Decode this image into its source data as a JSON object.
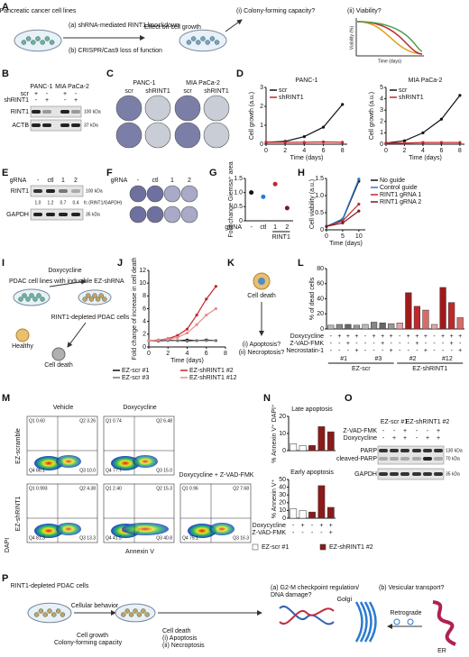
{
  "figure": {
    "panel_labels": [
      "A",
      "B",
      "C",
      "D",
      "E",
      "F",
      "G",
      "H",
      "I",
      "J",
      "K",
      "L",
      "M",
      "N",
      "O",
      "P"
    ],
    "a": {
      "cells": "Pancreatic cancer cell lines",
      "method1": "(a) shRNA-mediated RINT1 knockdown",
      "method2": "(b) CRISPR/Cas9 loss of function",
      "effect": "Effect on cell growth",
      "q1": "(i) Colony-forming capacity?",
      "q2": "(ii) Viability?",
      "ylabel": "Viability (%)",
      "xlabel": "Time (days)"
    },
    "b": {
      "lines": [
        "PANC-1",
        "MIA PaCa-2"
      ],
      "rows": [
        {
          "name": "scr",
          "signs": [
            "+",
            "-",
            "+",
            "-"
          ]
        },
        {
          "name": "shRINT1",
          "signs": [
            "-",
            "+",
            "-",
            "+"
          ]
        }
      ],
      "bands": [
        "RINT1",
        "ACTB"
      ],
      "markers": [
        "100 kDa",
        "37 kDa"
      ]
    },
    "c": {
      "lines": [
        "PANC-1",
        "MIA PaCa-2"
      ],
      "groups": [
        "scr",
        "shRINT1",
        "scr",
        "shRINT1"
      ]
    },
    "e": {
      "header": "gRNA",
      "lanes": [
        "-",
        "ctl",
        "1",
        "2"
      ],
      "bands": [
        "RINT1",
        "GAPDH"
      ],
      "quant": [
        "1.0",
        "1.2",
        "0.7",
        "0.4"
      ],
      "quant_label": "fc (RINT1/GAPDH)",
      "markers": [
        "100 kDa",
        "35 kDa"
      ]
    },
    "f": {
      "header": "gRNA",
      "lanes": [
        "-",
        "ctl",
        "1",
        "2"
      ]
    },
    "i": {
      "cells": "PDAC cell lines with inducible EZ-shRNA",
      "dox": "Doxycycline",
      "depleted": "RINT1-depleted PDAC cells",
      "healthy": "Healthy",
      "death": "Cell death"
    },
    "k": {
      "death": "Cell death",
      "q1": "(i) Apoptosis?",
      "q2": "(ii) Necroptosis?"
    },
    "m": {
      "columns": [
        "Vehicle",
        "Doxycycline",
        "Doxycycline + Z-VAD-FMK"
      ],
      "rows": [
        "EZ-scramble",
        "EZ-shRINT1"
      ],
      "xlabel": "Annexin V",
      "ylabel": "DAPI",
      "plots": [
        {
          "quadrants": [
            "Q1 0.60",
            "Q2 3.26",
            "Q4 86.1",
            "Q3 10.0"
          ]
        },
        {
          "quadrants": [
            "Q1 0.74",
            "Q2 6.48",
            "Q4 77.7",
            "Q3 15.0"
          ]
        },
        {
          "quadrants": [
            "Q1 0.993",
            "Q2 4.38",
            "Q4 81.3",
            "Q3 13.3"
          ]
        },
        {
          "quadrants": [
            "Q1 2.40",
            "Q2 15.3",
            "Q4 41.5",
            "Q3 40.8"
          ]
        },
        {
          "quadrants": [
            "Q1 0.96",
            "Q2 7.68",
            "Q4 75.1",
            "Q3 16.3"
          ]
        }
      ]
    },
    "o": {
      "header": [
        "EZ-scr #1",
        "EZ-shRINT1 #2"
      ],
      "rows": [
        {
          "name": "Z-VAD-FMK",
          "signs": [
            "-",
            "-",
            "+",
            "-",
            "-",
            "+"
          ]
        },
        {
          "name": "Doxycycline",
          "signs": [
            "-",
            "+",
            "+",
            "-",
            "+",
            "+"
          ]
        }
      ],
      "bands": [
        "PARP",
        "cleaved-PARP",
        "GAPDH"
      ],
      "markers": [
        "130 kDa",
        "70 kDa",
        "35 kDa"
      ]
    },
    "p": {
      "cells": "RINT1-depleted PDAC cells",
      "behavior": "Cellular behavior",
      "down1": "Cell growth",
      "down2": "Colony-forming capacity",
      "up1": "Cell death",
      "up2": "(i) Apoptosis",
      "up3": "(ii) Necroptosis",
      "hyp_a": "(a) G2-M checkpoint regulation/",
      "hyp_a2": "DNA damage?",
      "hyp_b": "(b) Vesicular transport?",
      "golgi": "Golgi",
      "retro": "Retrograde",
      "er": "ER"
    }
  },
  "chart_data": [
    {
      "type": "line",
      "title": "PANC-1",
      "xlabel": "Time (days)",
      "ylabel": "Cell growth (a.u.)",
      "x": [
        0,
        2,
        4,
        6,
        8
      ],
      "xlim": [
        0,
        8.5
      ],
      "xticks": [
        0,
        2,
        4,
        6,
        8
      ],
      "ylim": [
        0,
        3
      ],
      "yticks": [
        0,
        1,
        2,
        3
      ],
      "legend": "upper left",
      "series": [
        {
          "name": "scr",
          "color": "#111111",
          "values": [
            0.1,
            0.15,
            0.4,
            0.9,
            2.1
          ]
        },
        {
          "name": "shRINT1",
          "color": "#c0282d",
          "values": [
            0.1,
            0.1,
            0.1,
            0.12,
            0.1
          ]
        }
      ]
    },
    {
      "type": "line",
      "title": "MIA PaCa-2",
      "xlabel": "Time (days)",
      "ylabel": "Cell growth (a.u.)",
      "x": [
        0,
        2,
        4,
        6,
        8
      ],
      "xlim": [
        0,
        8.5
      ],
      "xticks": [
        0,
        2,
        4,
        6,
        8
      ],
      "ylim": [
        0,
        5
      ],
      "yticks": [
        0,
        1,
        2,
        3,
        4,
        5
      ],
      "legend": "upper left",
      "series": [
        {
          "name": "scr",
          "color": "#111111",
          "values": [
            0.1,
            0.3,
            1.0,
            2.2,
            4.3
          ]
        },
        {
          "name": "shRINT1",
          "color": "#c0282d",
          "values": [
            0.1,
            0.1,
            0.15,
            0.15,
            0.15
          ]
        }
      ]
    },
    {
      "type": "dot",
      "xlabel": "gRNA",
      "ylabel": "Fold change Giemsa⁺ area",
      "categories": [
        "-",
        "ctl",
        "1",
        "2"
      ],
      "group_label": "RINT1",
      "values": [
        1.0,
        0.85,
        1.3,
        0.45
      ],
      "colors": [
        "#111111",
        "#2b7bd0",
        "#c0282d",
        "#7a1a1a"
      ],
      "ylim": [
        0,
        1.5
      ],
      "yticks": [
        0,
        0.5,
        {
          "value": 1,
          "label": "1.0"
        },
        1.5
      ]
    },
    {
      "type": "line",
      "xlabel": "Time (days)",
      "ylabel": "Cell viability (a.u.)",
      "x": [
        0,
        5,
        10
      ],
      "xlim": [
        0,
        12
      ],
      "xticks": [
        0,
        5,
        10
      ],
      "ylim": [
        0,
        1.5
      ],
      "yticks": [
        0,
        0.5,
        {
          "value": 1,
          "label": "1.0"
        },
        1.5
      ],
      "legend": "right",
      "series": [
        {
          "name": "No guide",
          "color": "#111111",
          "values": [
            0.1,
            0.3,
            1.42
          ]
        },
        {
          "name": "Control guide",
          "color": "#2b7bd0",
          "values": [
            0.1,
            0.32,
            1.48
          ]
        },
        {
          "name": "RINT1 gRNA 1",
          "color": "#c0282d",
          "values": [
            0.1,
            0.26,
            0.75
          ]
        },
        {
          "name": "RINT1 gRNA 2",
          "color": "#7a1a1a",
          "values": [
            0.1,
            0.2,
            0.55
          ]
        }
      ]
    },
    {
      "type": "line",
      "xlabel": "Time (days)",
      "ylabel": "Fold change of increase in cell death",
      "x": [
        0,
        1,
        2,
        3,
        4,
        5,
        6,
        7
      ],
      "xlim": [
        0,
        8
      ],
      "xticks": [
        0,
        2,
        4,
        6,
        8
      ],
      "ylim": [
        0,
        12
      ],
      "yticks": [
        0,
        2,
        4,
        6,
        8,
        10,
        12
      ],
      "legend": "bottom",
      "series": [
        {
          "name": "EZ-scr #1",
          "color": "#111111",
          "values": [
            1,
            1,
            1.1,
            1,
            1.1,
            1,
            1.1,
            1
          ]
        },
        {
          "name": "EZ-shRINT1 #2",
          "color": "#c0282d",
          "values": [
            1,
            1.1,
            1.3,
            1.8,
            2.8,
            5,
            7.5,
            9.5
          ]
        },
        {
          "name": "EZ-scr #3",
          "color": "#777777",
          "values": [
            1,
            0.9,
            1,
            1,
            0.9,
            1,
            1,
            1
          ]
        },
        {
          "name": "EZ-shRINT1 #12",
          "color": "#e88a8a",
          "values": [
            1,
            1.1,
            1.2,
            1.5,
            2.2,
            3.5,
            5,
            6
          ]
        }
      ]
    },
    {
      "type": "bar",
      "ylabel": "% of dead cells",
      "values": [
        5,
        6,
        6,
        5,
        6,
        9,
        8,
        7,
        8,
        48,
        30,
        25,
        6,
        55,
        35,
        15
      ],
      "colors": [
        "#bbbbbb",
        "#888888",
        "#666666",
        "#999999",
        "#bbbbbb",
        "#888888",
        "#666666",
        "#999999",
        "#e7a5a5",
        "#9e1b1b",
        "#c0282d",
        "#d86a6a",
        "#e7a5a5",
        "#9e1b1b",
        "#c0282d",
        "#d86a6a"
      ],
      "ylim": [
        0,
        80
      ],
      "yticks": [
        0,
        20,
        40,
        60,
        80
      ],
      "conditions": [
        {
          "name": "Doxycycline",
          "signs": [
            "-",
            "+",
            "+",
            "+",
            "-",
            "+",
            "+",
            "+",
            "-",
            "+",
            "+",
            "+",
            "-",
            "+",
            "+",
            "+"
          ]
        },
        {
          "name": "Z-VAD-FMK",
          "signs": [
            "-",
            "-",
            "+",
            "-",
            "-",
            "-",
            "+",
            "-",
            "-",
            "-",
            "+",
            "-",
            "-",
            "-",
            "+",
            "-"
          ]
        },
        {
          "name": "Necrostatin-1",
          "signs": [
            "-",
            "-",
            "-",
            "+",
            "-",
            "-",
            "-",
            "+",
            "-",
            "-",
            "-",
            "+",
            "-",
            "-",
            "-",
            "+"
          ]
        }
      ],
      "groups": [
        "#1",
        "#3",
        "#2",
        "#12"
      ],
      "supergroups": [
        "EZ-scr",
        "EZ-shRINT1"
      ]
    },
    {
      "type": "bar",
      "title": "Late apoptosis",
      "ylabel": "% Annexin V⁺ DAPI⁺",
      "values": [
        4,
        3,
        3,
        14,
        11
      ],
      "colors": [
        "#ffffff",
        "#ffffff",
        "#8b1a1a",
        "#8b1a1a",
        "#8b1a1a"
      ],
      "ylim": [
        0,
        20
      ],
      "yticks": [
        0,
        10,
        20
      ]
    },
    {
      "type": "bar",
      "title": "Early apoptosis",
      "ylabel": "% Annexin V⁺",
      "values": [
        12,
        10,
        8,
        42,
        14
      ],
      "colors": [
        "#ffffff",
        "#ffffff",
        "#8b1a1a",
        "#8b1a1a",
        "#8b1a1a"
      ],
      "ylim": [
        0,
        50
      ],
      "yticks": [
        0,
        10,
        20,
        30,
        40,
        50
      ],
      "conditions": [
        {
          "name": "Doxycycline",
          "signs": [
            "-",
            "+",
            "-",
            "+",
            "+"
          ]
        },
        {
          "name": "Z-VAD-FMK",
          "signs": [
            "-",
            "-",
            "-",
            "-",
            "+"
          ]
        }
      ],
      "legend": "bottom",
      "legend_items": [
        {
          "name": "EZ-scr #1",
          "color": "#ffffff"
        },
        {
          "name": "EZ-shRINT1 #2",
          "color": "#8b1a1a"
        }
      ]
    }
  ]
}
